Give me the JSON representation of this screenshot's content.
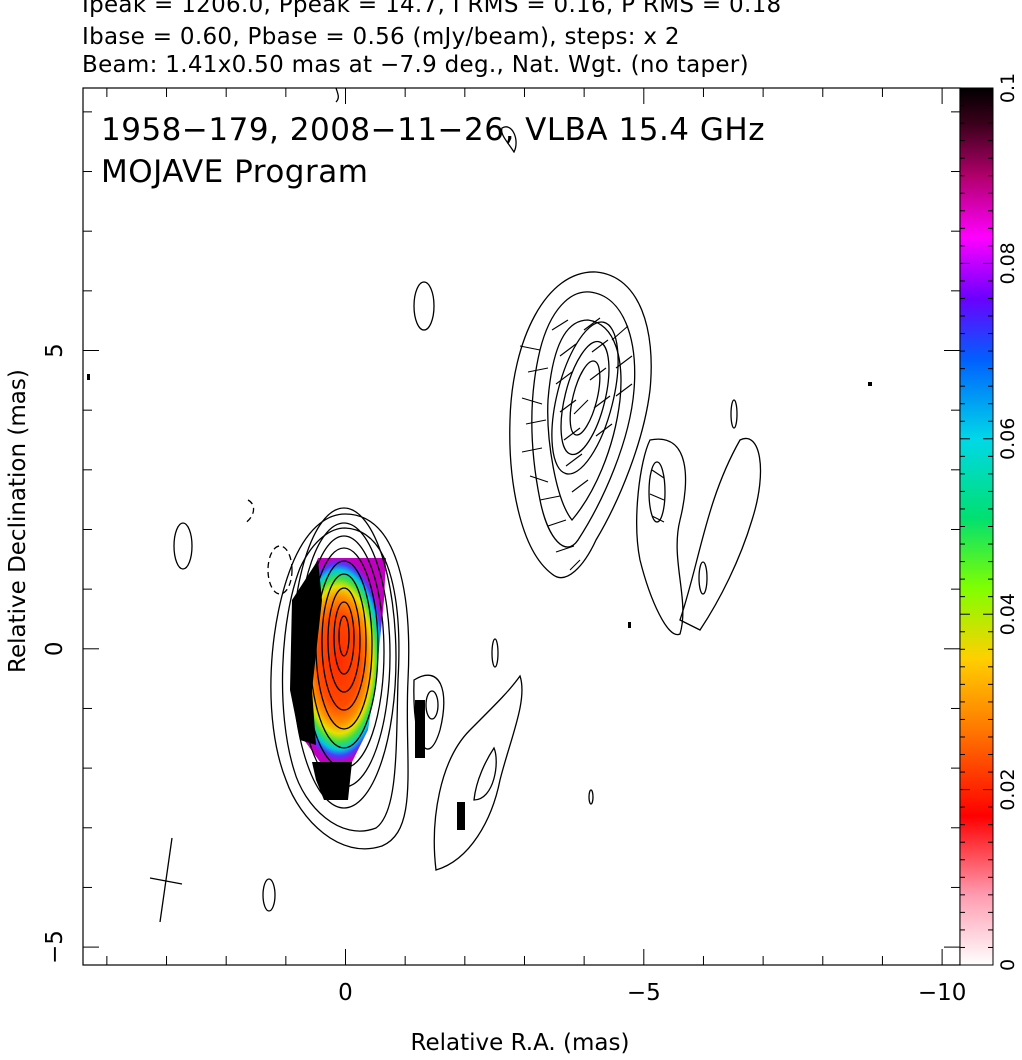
{
  "header": {
    "line1": "Ipeak = 1206.0, Ppeak = 14.7, I RMS = 0.16, P RMS = 0.18",
    "line2": "Ibase = 0.60, Pbase = 0.56 (mJy/beam), steps: x 2",
    "line3": "Beam: 1.41x0.50 mas at −7.9 deg., Nat. Wgt. (no taper)"
  },
  "annotations": {
    "source_line": "1958−179, 2008−11−26, VLBA 15.4 GHz",
    "program_line": "MOJAVE Program"
  },
  "colors": {
    "contour": "#000000",
    "colorbar_stops": [
      "#ffffff",
      "#ff9bb0",
      "#ff0000",
      "#ff7a00",
      "#ffd000",
      "#80ff00",
      "#00e070",
      "#00d8e8",
      "#0060ff",
      "#6a00ff",
      "#ff00ff",
      "#b0006a",
      "#3a001a",
      "#000000"
    ]
  },
  "chart_data": {
    "type": "contour",
    "xlabel": "Relative R.A. (mas)",
    "ylabel": "Relative Declination (mas)",
    "xlim": [
      4.4,
      -10.3
    ],
    "ylim": [
      -5.3,
      9.4
    ],
    "x_ticks": [
      0,
      -5,
      -10
    ],
    "x_tick_labels": [
      "0",
      "−5",
      "−10"
    ],
    "y_ticks": [
      -5,
      0,
      5
    ],
    "y_tick_labels": [
      "−5",
      "0",
      "5"
    ],
    "colorbar": {
      "label_ticks": [
        0,
        0.02,
        0.04,
        0.06,
        0.08,
        0.1
      ],
      "label_tick_labels": [
        "0",
        "0.02",
        "0.04",
        "0.06",
        "0.08",
        "0.1"
      ],
      "range": [
        0,
        0.1
      ]
    },
    "core": {
      "ra": 0,
      "dec": 0,
      "contour_levels": 11
    },
    "jet_component": {
      "ra": -3.9,
      "dec": 4.3
    },
    "beam": {
      "major_mas": 1.41,
      "minor_mas": 0.5,
      "pa_deg": -7.9,
      "ra": 2.9,
      "dec": -4.1
    }
  }
}
